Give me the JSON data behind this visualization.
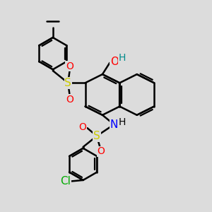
{
  "bg_color": "#dcdcdc",
  "bond_color": "#000000",
  "bond_width": 1.8,
  "atom_colors": {
    "O": "#ff0000",
    "S": "#cccc00",
    "N": "#0000ff",
    "Cl": "#00aa00",
    "H_oh": "#008b8b",
    "H_nh": "#000000",
    "C": "#000000"
  },
  "font_size": 10,
  "figsize": [
    3.0,
    3.0
  ],
  "dpi": 100,
  "xlim": [
    0,
    10
  ],
  "ylim": [
    0,
    10
  ]
}
